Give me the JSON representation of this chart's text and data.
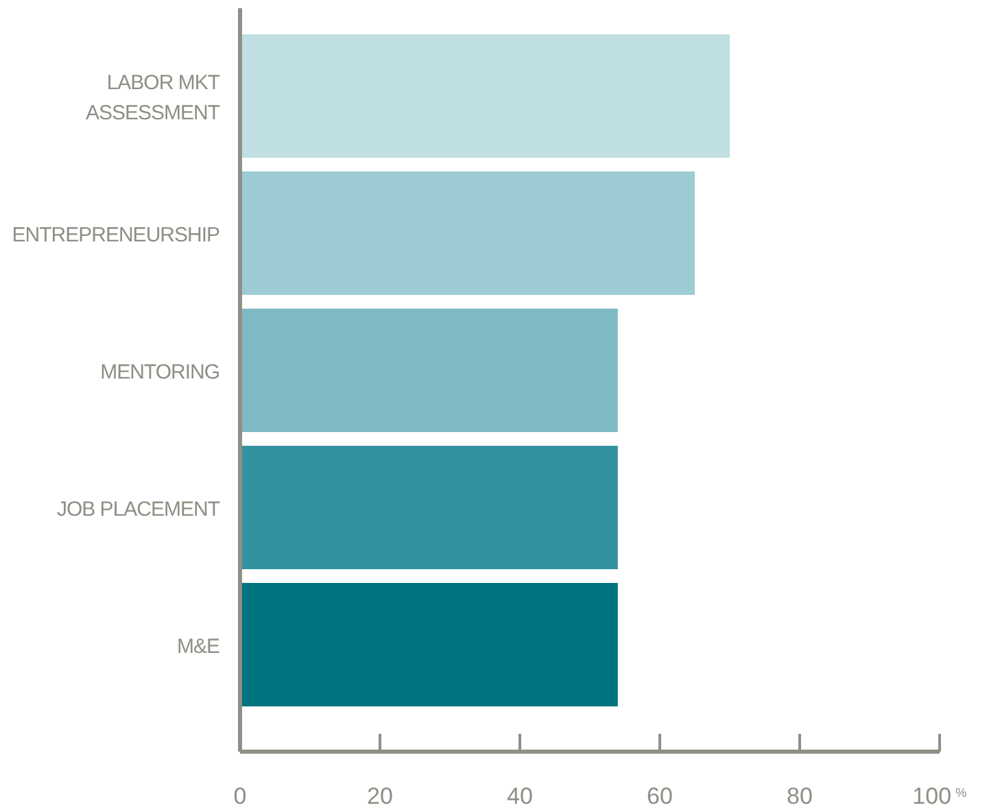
{
  "chart_data": {
    "type": "bar",
    "orientation": "horizontal",
    "categories": [
      "LABOR MKT ASSESSMENT",
      "ENTREPRENEURSHIP",
      "MENTORING",
      "JOB PLACEMENT",
      "M&E"
    ],
    "values": [
      70,
      65,
      54,
      54,
      54
    ],
    "colors": [
      "#c0dfe2",
      "#9dcbd3",
      "#7fb9c4",
      "#3492a0",
      "#00747f"
    ],
    "xlim": [
      0,
      100
    ],
    "xticks": [
      0,
      20,
      40,
      60,
      80,
      {
        "value": 100,
        "label": "100$^{%}$"
      }
    ]
  }
}
